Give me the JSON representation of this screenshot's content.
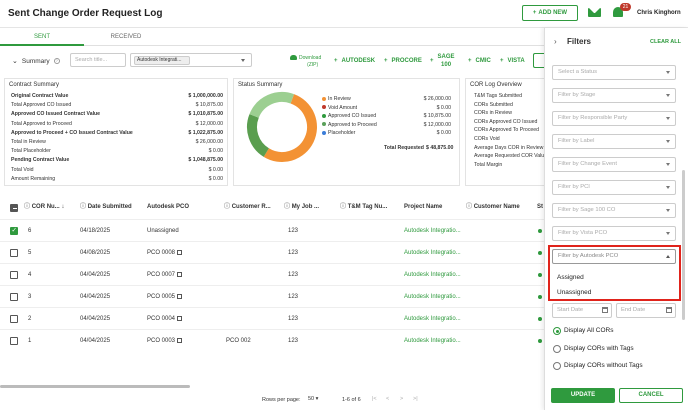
{
  "header": {
    "title": "Sent Change Order Request Log",
    "add_new": "ADD NEW",
    "notification_count": "21",
    "user": "Chris Kinghorn"
  },
  "tabs": [
    "SENT",
    "RECEIVED"
  ],
  "toolbar": {
    "summary": "Summary",
    "search_placeholder": "Search title...",
    "project_chip": "Autodesk Integrati...",
    "download_line1": "Download",
    "download_line2": "(ZIP)",
    "autodesk": "AUTODESK",
    "procore": "PROCORE",
    "sage_line1": "SAGE",
    "sage_line2": "100",
    "cmic": "CMIC",
    "vista": "VISTA"
  },
  "contract_summary": {
    "title": "Contract Summary",
    "rows": [
      {
        "label": "Original Contract Value",
        "value": "$ 1,000,000.00",
        "bold": true
      },
      {
        "label": "Total Approved CO Issued",
        "value": "$ 10,875.00",
        "bold": false
      },
      {
        "label": "Approved CO Issued Contract Value",
        "value": "$ 1,010,875.00",
        "bold": true
      },
      {
        "label": "Total Approved to Proceed",
        "value": "$ 12,000.00",
        "bold": false
      },
      {
        "label": "Approved to Proceed + CO Issued Contract Value",
        "value": "$ 1,022,875.00",
        "bold": true
      },
      {
        "label": "Total in Review",
        "value": "$ 26,000.00",
        "bold": false
      },
      {
        "label": "Total Placeholder",
        "value": "$ 0.00",
        "bold": false
      },
      {
        "label": "Pending Contract Value",
        "value": "$ 1,048,875.00",
        "bold": true
      },
      {
        "label": "Total Void",
        "value": "$ 0.00",
        "bold": false
      },
      {
        "label": "Amount Remaining",
        "value": "$ 0.00",
        "bold": false
      }
    ]
  },
  "status_summary": {
    "title": "Status Summary",
    "legend": [
      {
        "label": "In Review",
        "value": "$ 26,000.00",
        "color": "#f39234"
      },
      {
        "label": "Void Amount",
        "value": "$ 0.00",
        "color": "#c0392b"
      },
      {
        "label": "Approved CO Issued",
        "value": "$ 10,875.00",
        "color": "#2f9a3e"
      },
      {
        "label": "Approved to Proceed",
        "value": "$ 12,000.00",
        "color": "#5aa05a"
      },
      {
        "label": "Placeholder",
        "value": "$ 0.00",
        "color": "#3b7dd8"
      }
    ],
    "total_label": "Total Requested",
    "total_value": "$ 48,875.00",
    "donut": [
      {
        "name": "In Review",
        "value": 26000,
        "color": "#f39234"
      },
      {
        "name": "Approved CO Issued",
        "value": 10875,
        "color": "#5a9e4f"
      },
      {
        "name": "Approved to Proceed",
        "value": 12000,
        "color": "#9ccf91"
      }
    ]
  },
  "cor_overview": {
    "title": "COR Log Overview",
    "rows": [
      "T&M Tags Submitted",
      "CORs Submitted",
      "CORs in Review",
      "CORs Approved CO Issued",
      "CORs Approved To Proceed",
      "CORs Void",
      "Average Days COR in Review",
      "Average Requested COR Value",
      "Total Margin"
    ]
  },
  "table": {
    "columns": [
      "COR Nu...",
      "Date Submitted",
      "Autodesk PCO",
      "Customer R...",
      "My Job ...",
      "T&M Tag Nu...",
      "Project Name",
      "Customer Name",
      "St"
    ],
    "rows": [
      {
        "num": "6",
        "date": "04/18/2025",
        "pco": "Unassigned",
        "pco_link": false,
        "customer_r": "",
        "job": "123",
        "project": "Autodesk Integratio...",
        "checked": true
      },
      {
        "num": "5",
        "date": "04/08/2025",
        "pco": "PCO 0008",
        "pco_link": true,
        "customer_r": "",
        "job": "123",
        "project": "Autodesk Integratio...",
        "checked": false
      },
      {
        "num": "4",
        "date": "04/04/2025",
        "pco": "PCO 0007",
        "pco_link": true,
        "customer_r": "",
        "job": "123",
        "project": "Autodesk Integratio...",
        "checked": false
      },
      {
        "num": "3",
        "date": "04/04/2025",
        "pco": "PCO 0005",
        "pco_link": true,
        "customer_r": "",
        "job": "123",
        "project": "Autodesk Integratio...",
        "checked": false
      },
      {
        "num": "2",
        "date": "04/04/2025",
        "pco": "PCO 0004",
        "pco_link": true,
        "customer_r": "",
        "job": "123",
        "project": "Autodesk Integratio...",
        "checked": false
      },
      {
        "num": "1",
        "date": "04/04/2025",
        "pco": "PCO 0003",
        "pco_link": true,
        "customer_r": "PCO 002",
        "job": "123",
        "project": "Autodesk Integratio...",
        "checked": false
      }
    ]
  },
  "pagination": {
    "rows_label": "Rows per page:",
    "rows_value": "50",
    "range": "1-6 of 6"
  },
  "filters": {
    "title": "Filters",
    "clear_all": "CLEAR ALL",
    "selects": [
      "Select a Status",
      "Filter by Stage",
      "Filter by Responsible Party",
      "Filter by Label",
      "Filter by Change Event",
      "Filter by PCI",
      "Filter by Sage 100 CO",
      "Filter by Vista PCO"
    ],
    "autodesk_pco": "Filter by Autodesk PCO",
    "options": [
      "Assigned",
      "Unassigned"
    ],
    "start_date": "Start Date",
    "end_date": "End Date",
    "radios": [
      "Display All CORs",
      "Display CORs with Tags",
      "Display CORs without Tags"
    ],
    "update": "UPDATE",
    "cancel": "CANCEL"
  }
}
